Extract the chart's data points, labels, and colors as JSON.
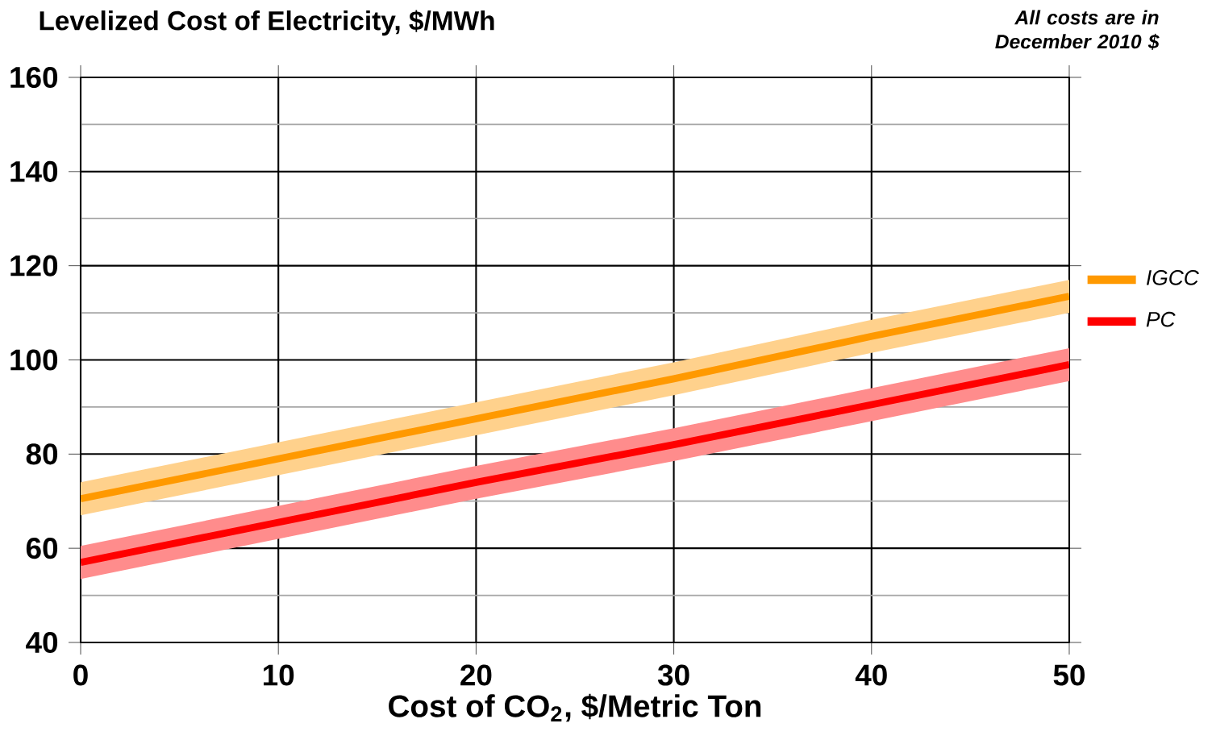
{
  "chart_data": {
    "type": "line",
    "title": "Levelized Cost of Electricity, $/MWh",
    "xlabel": "Cost of CO$_{2}$, $/Metric Ton",
    "annotations": [
      "All costs are in December 2010 $"
    ],
    "x": [
      0,
      10,
      20,
      30,
      40,
      50
    ],
    "series": [
      {
        "name": "IGCC",
        "color": "#ff9900",
        "values": [
          70.5,
          79,
          87.5,
          96,
          105,
          113.5
        ],
        "lower": [
          67,
          75.5,
          84,
          92.5,
          101.5,
          110
        ],
        "upper": [
          74,
          82.5,
          91,
          99.5,
          108.5,
          117
        ]
      },
      {
        "name": "PC",
        "color": "#ff0000",
        "values": [
          57,
          65.5,
          74,
          82,
          90.5,
          99
        ],
        "lower": [
          53.5,
          62,
          70.5,
          78.5,
          87,
          95.5
        ],
        "upper": [
          60.5,
          69,
          77.5,
          85.5,
          94,
          102.5
        ]
      }
    ],
    "xlim": [
      0,
      50
    ],
    "xticks": [
      0,
      10,
      20,
      30,
      40,
      50
    ],
    "ylim": [
      40,
      160
    ],
    "yticks": [
      40,
      {
        "value": 50,
        "label": null
      },
      60,
      {
        "value": 70,
        "label": null
      },
      80,
      {
        "value": 90,
        "label": null
      },
      100,
      {
        "value": 110,
        "label": null
      },
      120,
      {
        "value": 130,
        "label": null
      },
      140,
      {
        "value": 150,
        "label": null
      },
      160
    ],
    "grid": true,
    "legend": "right",
    "marker": "none",
    "line_style": "solid"
  }
}
